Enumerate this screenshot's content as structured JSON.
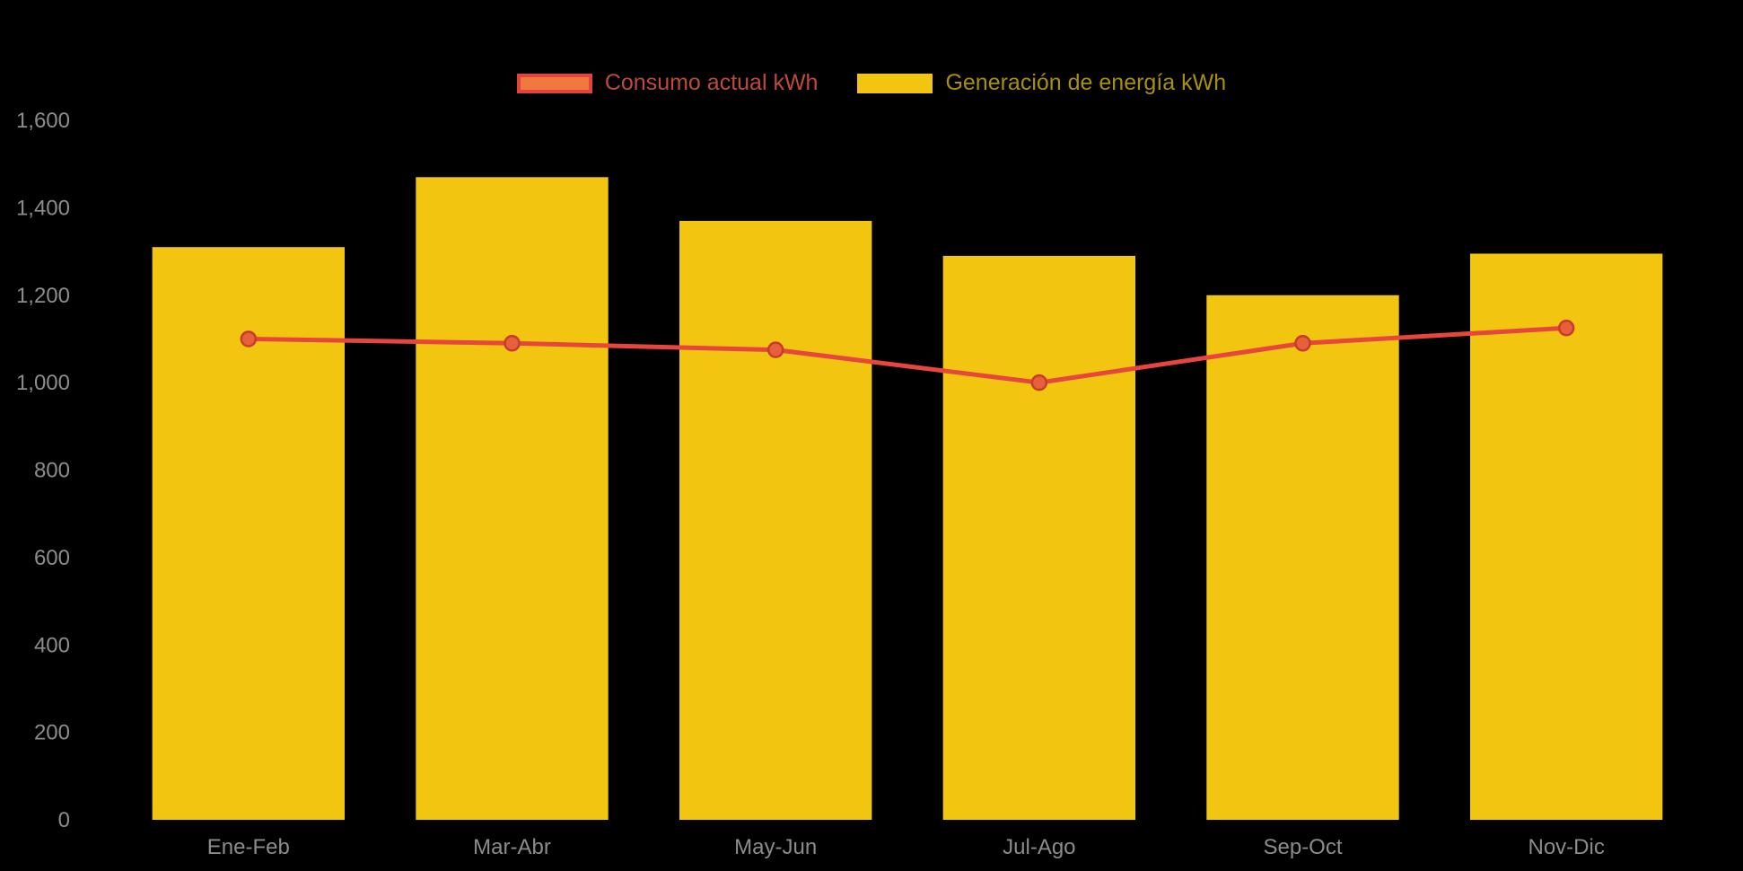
{
  "chart_data": {
    "type": "bar",
    "title": "",
    "xlabel": "",
    "ylabel": "",
    "categories": [
      "Ene-Feb",
      "Mar-Abr",
      "May-Jun",
      "Jul-Ago",
      "Sep-Oct",
      "Nov-Dic"
    ],
    "series": [
      {
        "name": "Consumo actual kWh",
        "type": "line",
        "values": [
          1100,
          1090,
          1075,
          1000,
          1090,
          1125
        ],
        "color": "#E7463D",
        "point_fill": "#E7603C",
        "point_stroke": "#C93A2E",
        "legend_swatch_fill": "#EF7940",
        "legend_swatch_stroke": "#E2443A",
        "legend_text_color": "#BE4A3E"
      },
      {
        "name": "Generación de energía kWh",
        "type": "bar",
        "values": [
          1310,
          1470,
          1370,
          1290,
          1200,
          1295
        ],
        "color": "#F2C511",
        "point_fill": "#F2C511",
        "point_stroke": "#F2C511",
        "legend_swatch_fill": "#F2C511",
        "legend_swatch_stroke": "#F2C511",
        "legend_text_color": "#A8900F"
      }
    ],
    "ylim": [
      0,
      1600
    ],
    "yticks": [
      0,
      200,
      400,
      600,
      800,
      1000,
      1200,
      1400,
      1600
    ],
    "ytick_labels": [
      "0",
      "200",
      "400",
      "600",
      "800",
      "1,000",
      "1,200",
      "1,400",
      "1,600"
    ],
    "grid": false,
    "legend_position": "top",
    "background_color": "#000000",
    "axis_label_color": "#8C8C8C"
  }
}
